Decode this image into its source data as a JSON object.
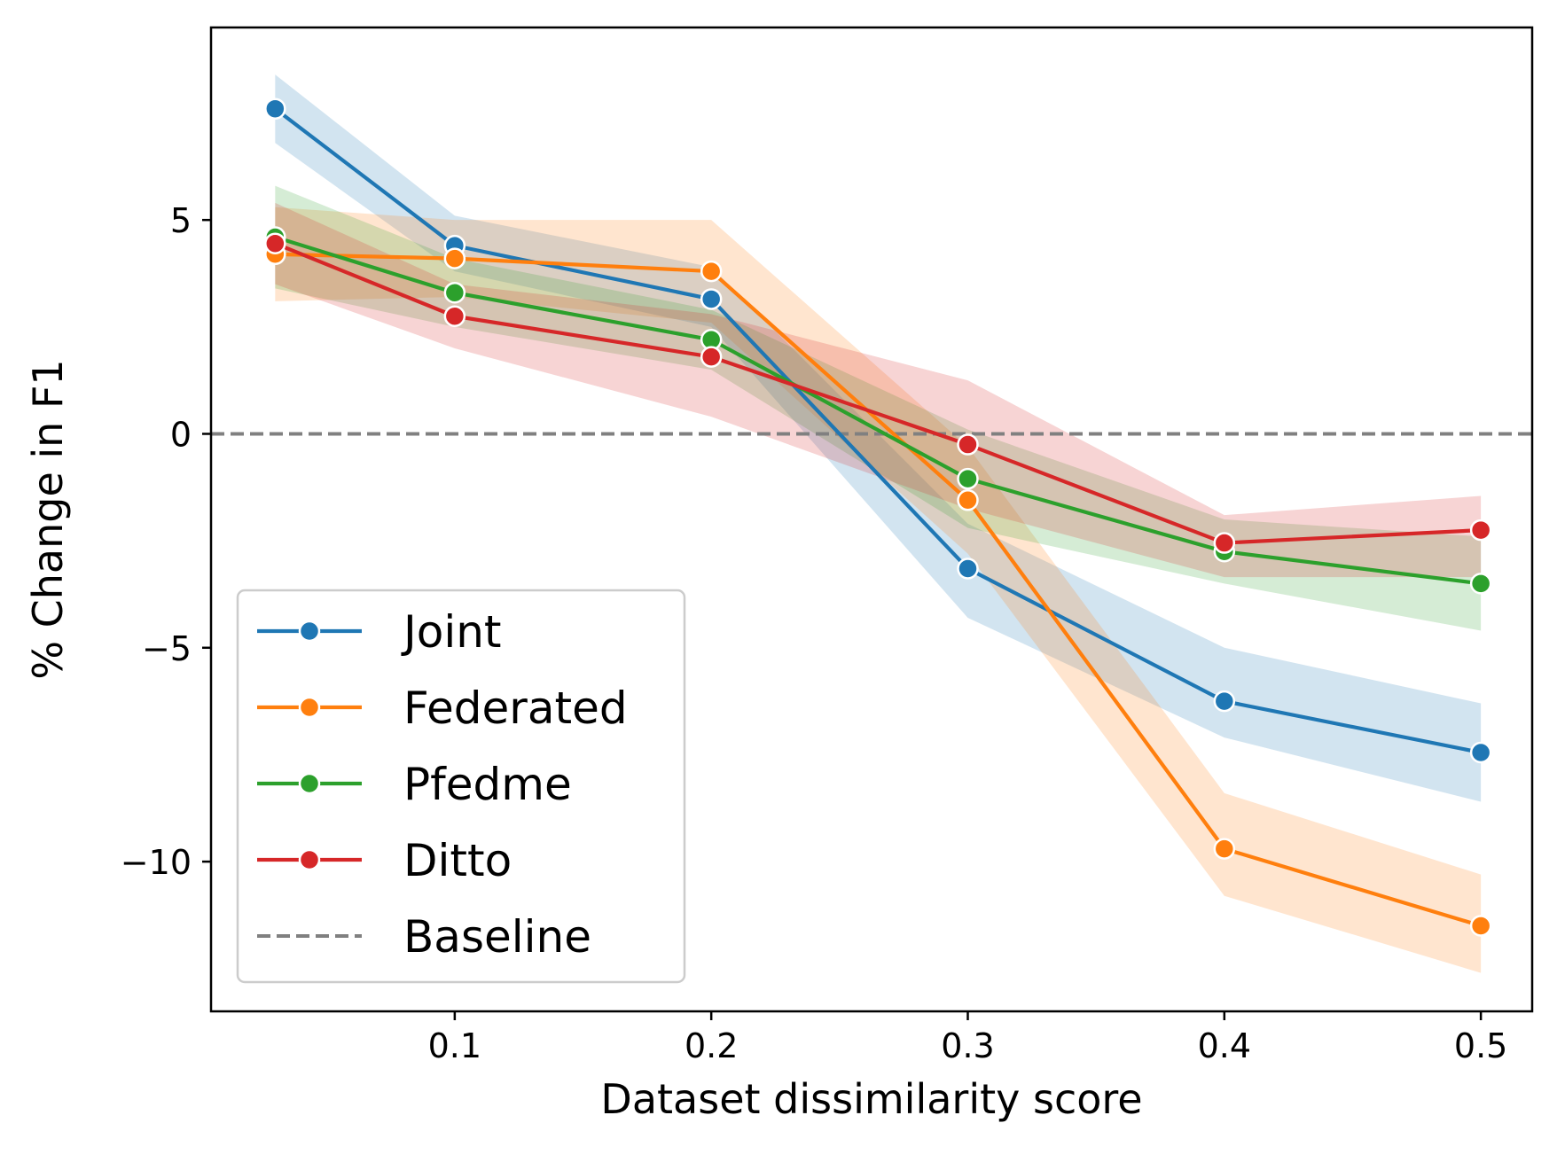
{
  "chart_data": {
    "type": "line",
    "title": "",
    "xlabel": "Dataset dissimilarity score",
    "ylabel": "% Change in F1",
    "xlim": [
      0.005,
      0.52
    ],
    "ylim": [
      -13.5,
      9.5
    ],
    "x": [
      0.03,
      0.1,
      0.2,
      0.3,
      0.4,
      0.5
    ],
    "x_ticks": [
      0.1,
      0.2,
      0.3,
      0.4,
      0.5
    ],
    "x_tick_labels": [
      "0.1",
      "0.2",
      "0.3",
      "0.4",
      "0.5"
    ],
    "y_ticks": [
      5,
      0,
      -5,
      -10
    ],
    "y_tick_labels": [
      "5",
      "0",
      "−5",
      "−10"
    ],
    "legend_position": "lower-left",
    "series": [
      {
        "name": "Joint",
        "color": "#1f77b4",
        "values": [
          7.6,
          4.4,
          3.15,
          -3.15,
          -6.25,
          -7.45
        ],
        "band_upper": [
          8.4,
          5.1,
          3.9,
          -2.1,
          -5.0,
          -6.3
        ],
        "band_lower": [
          6.8,
          3.8,
          2.5,
          -4.3,
          -7.1,
          -8.6
        ]
      },
      {
        "name": "Federated",
        "color": "#ff7f0e",
        "values": [
          4.2,
          4.1,
          3.8,
          -1.55,
          -9.7,
          -11.5
        ],
        "band_upper": [
          5.3,
          5.0,
          5.0,
          -0.3,
          -8.4,
          -10.3
        ],
        "band_lower": [
          3.1,
          3.2,
          2.6,
          -2.8,
          -10.8,
          -12.6
        ]
      },
      {
        "name": "Pfedme",
        "color": "#2ca02c",
        "values": [
          4.6,
          3.3,
          2.2,
          -1.05,
          -2.75,
          -3.5
        ],
        "band_upper": [
          5.8,
          4.1,
          2.9,
          0.1,
          -2.0,
          -2.4
        ],
        "band_lower": [
          3.4,
          2.5,
          1.5,
          -2.2,
          -3.5,
          -4.6
        ]
      },
      {
        "name": "Ditto",
        "color": "#d62728",
        "values": [
          4.45,
          2.75,
          1.8,
          -0.25,
          -2.55,
          -2.25
        ],
        "band_upper": [
          5.4,
          3.5,
          2.8,
          1.25,
          -1.9,
          -1.45
        ],
        "band_lower": [
          3.5,
          2.0,
          0.4,
          -1.75,
          -3.35,
          -3.35
        ]
      }
    ],
    "baseline": {
      "name": "Baseline",
      "value": 0,
      "color": "#808080",
      "style": "dashed"
    }
  }
}
